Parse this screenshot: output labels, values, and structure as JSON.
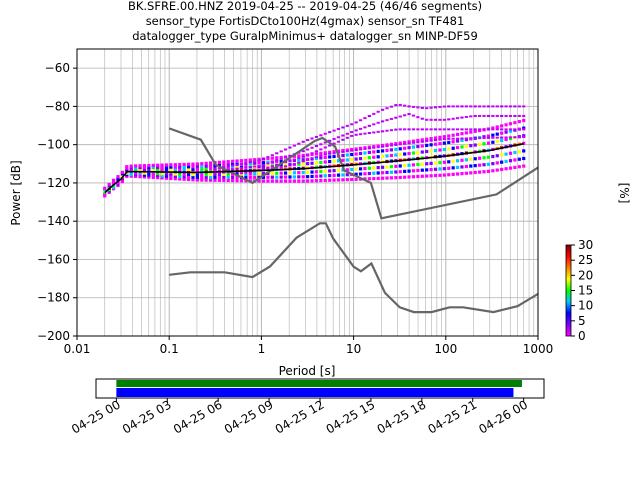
{
  "title_lines": [
    "BK.SFRE.00.HNZ   2019-04-25 -- 2019-04-25  (46/46 segments)",
    "sensor_type FortisDCto100Hz(4gmax) sensor_sn TF481",
    "datalogger_type GuralpMinimus+ datalogger_sn MINP-DF59"
  ],
  "chart_data": [
    {
      "type": "heatmap",
      "subtype": "ppsd",
      "xlabel": "Period [s]",
      "ylabel": "Power [dB]",
      "xscale": "log",
      "xlim": [
        0.01,
        1000
      ],
      "ylim": [
        -200,
        -50
      ],
      "x_ticks": [
        0.01,
        0.1,
        1,
        10,
        100,
        1000
      ],
      "x_tick_labels": [
        "0.01",
        "0.1",
        "1",
        "10",
        "100",
        "1000"
      ],
      "y_ticks": [
        -200,
        -180,
        -160,
        -140,
        -120,
        -100,
        -80,
        -60
      ],
      "y_tick_labels": [
        "−200",
        "−180",
        "−160",
        "−140",
        "−120",
        "−100",
        "−80",
        "−60"
      ],
      "grid": true,
      "noise_models": {
        "color": "#666666",
        "NHNM": [
          [
            0.1,
            -91.5
          ],
          [
            0.22,
            -97.4
          ],
          [
            0.32,
            -110.5
          ],
          [
            0.8,
            -120
          ],
          [
            3.8,
            -98
          ],
          [
            4.6,
            -96.5
          ],
          [
            6.3,
            -101
          ],
          [
            7.9,
            -113.5
          ],
          [
            15.4,
            -120
          ],
          [
            20,
            -138.5
          ],
          [
            354.8,
            -126
          ],
          [
            1000,
            -112
          ]
        ],
        "NLNM": [
          [
            0.1,
            -168
          ],
          [
            0.17,
            -166.7
          ],
          [
            0.4,
            -166.7
          ],
          [
            0.8,
            -169.2
          ],
          [
            1.24,
            -163.7
          ],
          [
            2.4,
            -148.6
          ],
          [
            4.3,
            -141.1
          ],
          [
            5,
            -141.1
          ],
          [
            6,
            -149
          ],
          [
            10,
            -163.8
          ],
          [
            12,
            -166.2
          ],
          [
            15.6,
            -162.1
          ],
          [
            21.9,
            -177.5
          ],
          [
            31.6,
            -185
          ],
          [
            45,
            -187.5
          ],
          [
            70,
            -187.5
          ],
          [
            110,
            -185
          ],
          [
            154,
            -185
          ],
          [
            328,
            -187.5
          ],
          [
            600,
            -184.4
          ],
          [
            1000,
            -178
          ]
        ]
      },
      "mode": [
        [
          0.02,
          -125
        ],
        [
          0.025,
          -121
        ],
        [
          0.03,
          -118
        ],
        [
          0.035,
          -114
        ],
        [
          0.2,
          -114.5
        ],
        [
          1,
          -113.5
        ],
        [
          3,
          -112.5
        ],
        [
          10,
          -110.5
        ],
        [
          30,
          -108.5
        ],
        [
          100,
          -106
        ],
        [
          300,
          -103
        ],
        [
          700,
          -99.5
        ]
      ],
      "upper_branches": [
        [
          [
            0.3,
            -113
          ],
          [
            1,
            -108
          ],
          [
            3,
            -98
          ],
          [
            10,
            -89
          ],
          [
            20,
            -82
          ],
          [
            30,
            -79
          ],
          [
            40,
            -80
          ],
          [
            60,
            -81
          ],
          [
            100,
            -80
          ],
          [
            700,
            -80
          ]
        ],
        [
          [
            0.3,
            -114
          ],
          [
            1,
            -111
          ],
          [
            3,
            -103
          ],
          [
            10,
            -93
          ],
          [
            20,
            -88
          ],
          [
            40,
            -84
          ],
          [
            60,
            -87
          ],
          [
            100,
            -87
          ],
          [
            200,
            -85
          ],
          [
            700,
            -85
          ]
        ],
        [
          [
            0.3,
            -115
          ],
          [
            1,
            -113
          ],
          [
            3,
            -106
          ],
          [
            10,
            -95
          ],
          [
            30,
            -92
          ],
          [
            100,
            -92
          ],
          [
            700,
            -92
          ]
        ],
        [
          [
            0.6,
            -115
          ],
          [
            2,
            -111
          ],
          [
            5,
            -105
          ],
          [
            10,
            -103
          ],
          [
            30,
            -100
          ],
          [
            100,
            -97
          ],
          [
            700,
            -96
          ]
        ]
      ],
      "colorbar": {
        "label": "[%]",
        "ticks": [
          0,
          5,
          10,
          15,
          20,
          25,
          30
        ],
        "tick_labels": [
          "0",
          "5",
          "10",
          "15",
          "20",
          "25",
          "30"
        ],
        "range": [
          0,
          30
        ],
        "colors": [
          "#ff00ff",
          "#8000ff",
          "#0000ff",
          "#00c8ff",
          "#00ff00",
          "#ffff00",
          "#ff8000",
          "#ff0000",
          "#800000"
        ]
      }
    },
    {
      "type": "bar",
      "subtype": "data_coverage",
      "x_tick_labels": [
        "04-25 00",
        "04-25 03",
        "04-25 06",
        "04-25 09",
        "04-25 12",
        "04-25 15",
        "04-25 18",
        "04-25 21",
        "04-26 00"
      ],
      "x_ticks_hours": [
        0,
        3,
        6,
        9,
        12,
        15,
        18,
        21,
        24
      ],
      "xlim_hours": [
        -1.2,
        25.2
      ],
      "series": [
        {
          "color": "#008000",
          "start_hour": 0,
          "end_hour": 23.9
        },
        {
          "color": "#0000ff",
          "start_hour": 0,
          "end_hour": 23.4
        }
      ]
    }
  ]
}
